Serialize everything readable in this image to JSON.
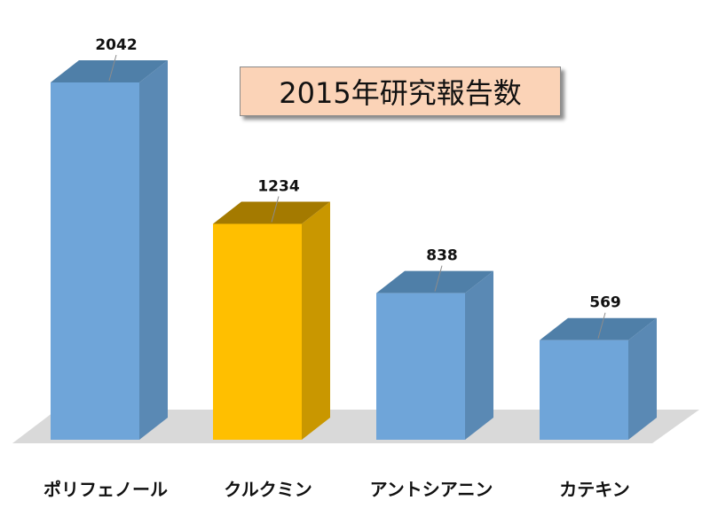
{
  "title": "2015年研究報告数",
  "chart_data": {
    "type": "bar",
    "title": "2015年研究報告数",
    "categories": [
      "ポリフェノール",
      "クルクミン",
      "アントシアニン",
      "カテキン"
    ],
    "values": [
      2042,
      1234,
      838,
      569
    ],
    "highlight_index": 1,
    "ylim": [
      0,
      2042
    ],
    "grid": false,
    "legend": "none",
    "colors": {
      "default_front": "#6fa5d9",
      "default_top": "#4f7fa8",
      "default_side": "#5a89b4",
      "highlight_front": "#ffbf00",
      "highlight_top": "#a47a00",
      "highlight_side": "#c99700",
      "floor": "#d9d9d9"
    }
  }
}
